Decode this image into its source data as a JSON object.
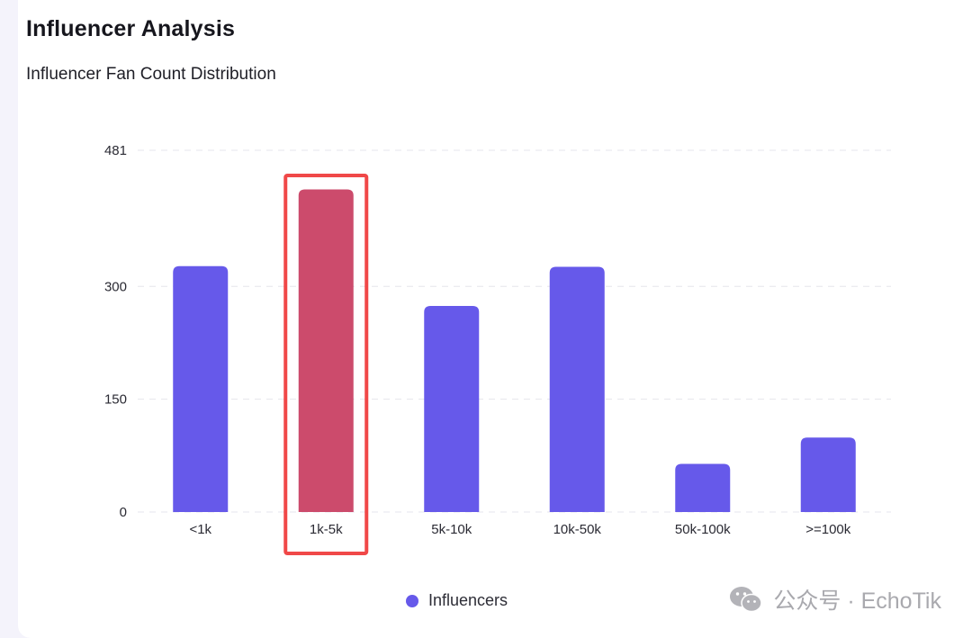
{
  "header": {
    "title": "Influencer Analysis",
    "subtitle": "Influencer Fan Count Distribution"
  },
  "chart_data": {
    "type": "bar",
    "title": "",
    "xlabel": "",
    "ylabel": "",
    "categories": [
      "<1k",
      "1k-5k",
      "5k-10k",
      "10k-50k",
      "50k-100k",
      ">=100k"
    ],
    "series": [
      {
        "name": "Influencers",
        "values": [
          327,
          429,
          274,
          326,
          64,
          99
        ]
      }
    ],
    "ylim": [
      0,
      481
    ],
    "yticks": [
      0,
      150,
      300,
      481
    ],
    "grid": "horizontal dashed",
    "legend": "bottom-center",
    "highlight": {
      "category": "1k-5k",
      "bar_color": "#cc4b6c",
      "box_color": "#f04848"
    },
    "colors": {
      "bar": "#6659ea"
    }
  },
  "legend": {
    "label": "Influencers",
    "icon": "circle-dot-icon"
  },
  "watermark": {
    "icon": "wechat-icon",
    "text": "公众号 · EchoTik"
  }
}
